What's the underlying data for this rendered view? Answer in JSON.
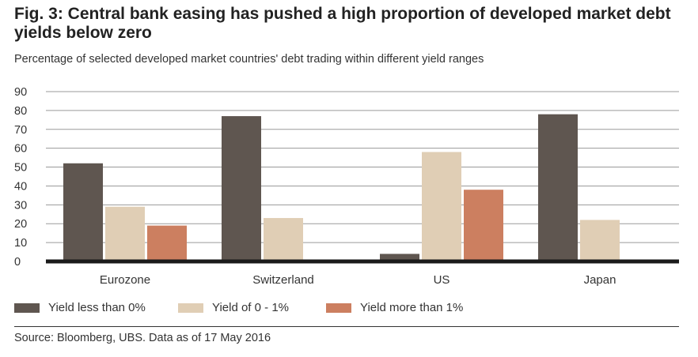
{
  "title": "Fig. 3: Central bank easing has pushed a high proportion of developed market debt yields below zero",
  "subtitle": "Percentage of selected developed market countries' debt trading within different yield ranges",
  "source": "Source: Bloomberg, UBS. Data as of 17 May 2016",
  "chart_data": {
    "type": "bar",
    "categories": [
      "Eurozone",
      "Switzerland",
      "US",
      "Japan"
    ],
    "series": [
      {
        "name": "Yield less than 0%",
        "color": "#5f5650",
        "values": [
          52,
          77,
          4,
          78
        ]
      },
      {
        "name": "Yield of 0 - 1%",
        "color": "#e0ceb5",
        "values": [
          29,
          23,
          58,
          22
        ]
      },
      {
        "name": "Yield more than 1%",
        "color": "#cc7f60",
        "values": [
          19,
          0,
          38,
          0
        ]
      }
    ],
    "ylim": [
      0,
      90
    ],
    "yticks": [
      0,
      10,
      20,
      30,
      40,
      50,
      60,
      70,
      80,
      90
    ],
    "grid": true,
    "legend": "bottom"
  }
}
